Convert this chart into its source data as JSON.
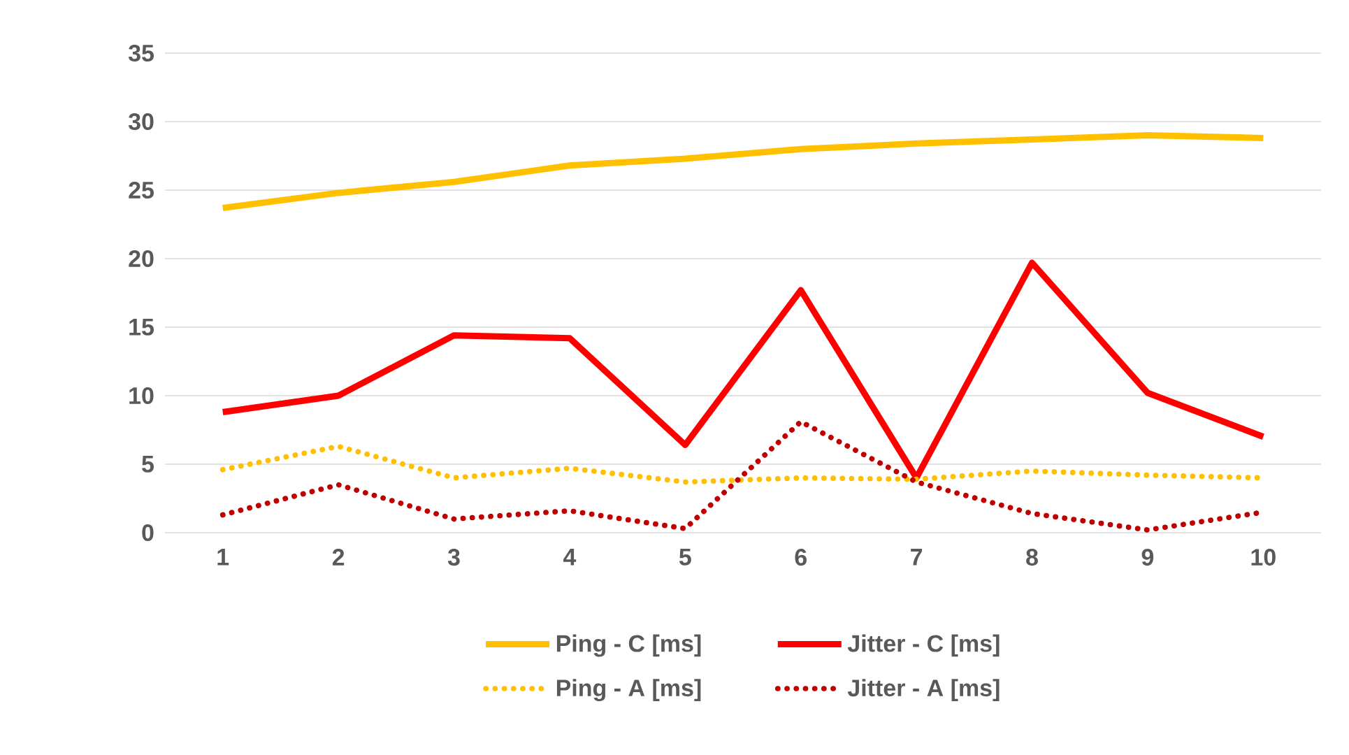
{
  "chart_data": {
    "type": "line",
    "categories": [
      "1",
      "2",
      "3",
      "4",
      "5",
      "6",
      "7",
      "8",
      "9",
      "10"
    ],
    "series": [
      {
        "name": "Ping - C [ms]",
        "color": "#ffc000",
        "line_style": "solid",
        "values": [
          23.7,
          24.8,
          25.6,
          26.8,
          27.3,
          28.0,
          28.4,
          28.7,
          29.0,
          28.8
        ]
      },
      {
        "name": "Jitter - C [ms]",
        "color": "#ff0000",
        "line_style": "solid",
        "values": [
          8.8,
          10.0,
          14.4,
          14.2,
          6.4,
          17.7,
          4.0,
          19.7,
          10.2,
          7.0
        ]
      },
      {
        "name": "Ping - A [ms]",
        "color": "#ffc000",
        "line_style": "dotted",
        "values": [
          4.6,
          6.3,
          4.0,
          4.7,
          3.7,
          4.0,
          3.9,
          4.5,
          4.2,
          4.0
        ]
      },
      {
        "name": "Jitter - A [ms]",
        "color": "#c00000",
        "line_style": "dotted",
        "values": [
          1.3,
          3.5,
          1.0,
          1.6,
          0.3,
          8.1,
          3.7,
          1.4,
          0.2,
          1.5
        ]
      }
    ],
    "ylim": [
      0,
      35
    ],
    "yticks": [
      0,
      5,
      10,
      15,
      20,
      25,
      30,
      35
    ],
    "grid": "y",
    "legend": "bottom"
  }
}
